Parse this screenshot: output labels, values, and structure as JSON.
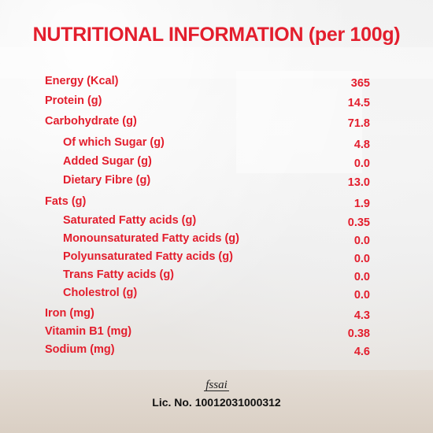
{
  "title": "NUTRITIONAL INFORMATION (per 100g)",
  "accent_color": "#e31e2d",
  "rows": [
    {
      "label": "Energy (Kcal)",
      "value": "365",
      "indent": false
    },
    {
      "label": "Protein (g)",
      "value": "14.5",
      "indent": false
    },
    {
      "label": "Carbohydrate (g)",
      "value": "71.8",
      "indent": false
    },
    {
      "label": "Of which Sugar (g)",
      "value": "4.8",
      "indent": true
    },
    {
      "label": "Added Sugar (g)",
      "value": "0.0",
      "indent": true
    },
    {
      "label": "Dietary Fibre (g)",
      "value": "13.0",
      "indent": true
    },
    {
      "label": "Fats (g)",
      "value": "1.9",
      "indent": false
    },
    {
      "label": "Saturated Fatty acids (g)",
      "value": "0.35",
      "indent": true
    },
    {
      "label": "Monounsaturated Fatty acids (g)",
      "value": "0.0",
      "indent": true
    },
    {
      "label": "Polyunsaturated Fatty acids (g)",
      "value": "0.0",
      "indent": true
    },
    {
      "label": "Trans Fatty acids (g)",
      "value": "0.0",
      "indent": true
    },
    {
      "label": "Cholestrol (g)",
      "value": "0.0",
      "indent": true
    },
    {
      "label": "Iron (mg)",
      "value": "4.3",
      "indent": false
    },
    {
      "label": "Vitamin B1 (mg)",
      "value": "0.38",
      "indent": false
    },
    {
      "label": "Sodium (mg)",
      "value": "4.6",
      "indent": false
    }
  ],
  "fssai": {
    "logo_text": "fssai",
    "license": "Lic. No. 10012031000312"
  }
}
